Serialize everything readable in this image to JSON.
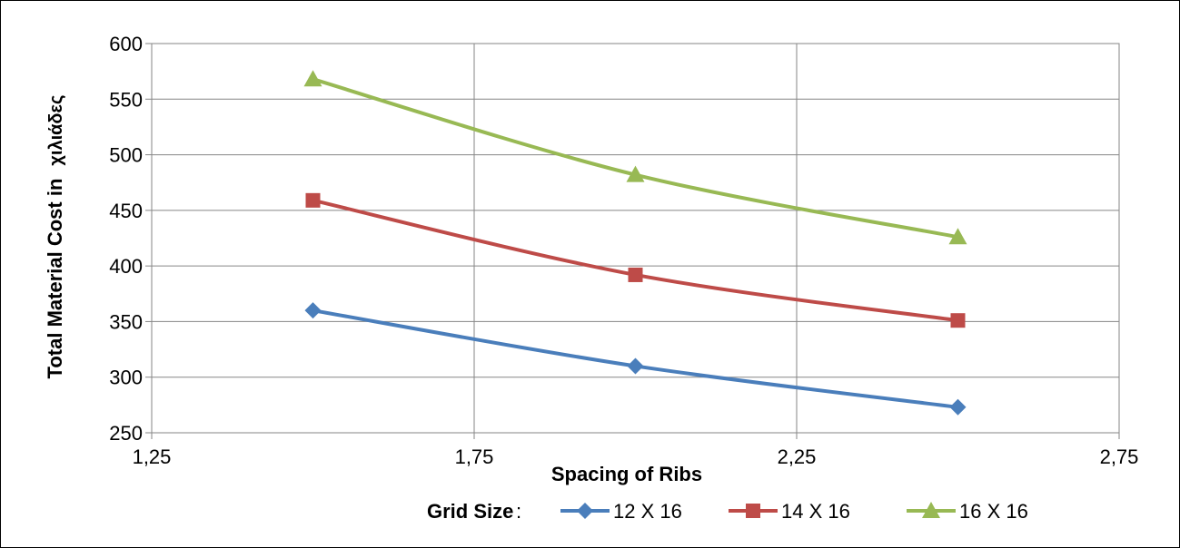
{
  "chart_data": {
    "type": "scatter",
    "xlabel": "Spacing of Ribs",
    "ylabel": "Total Material Cost in",
    "ylabel_unit": "χιλιάδες",
    "xlim": [
      1.25,
      2.75
    ],
    "ylim": [
      250,
      600
    ],
    "x_ticks": [
      "1,25",
      "1,75",
      "2,25",
      "2,75"
    ],
    "y_ticks": [
      "250",
      "300",
      "350",
      "400",
      "450",
      "500",
      "550",
      "600"
    ],
    "x_tick_values": [
      1.25,
      1.75,
      2.25,
      2.75
    ],
    "y_tick_values": [
      250,
      300,
      350,
      400,
      450,
      500,
      550,
      600
    ],
    "grid": true,
    "smooth_lines": true,
    "legend_title": "Grid Size",
    "legend_separator": ":",
    "legend_position": "bottom",
    "series": [
      {
        "name": "12 X 16",
        "marker": "diamond",
        "color": "#4A7EBB",
        "x": [
          1.5,
          2.0,
          2.5
        ],
        "y": [
          360,
          310,
          273
        ]
      },
      {
        "name": "14 X 16",
        "marker": "square",
        "color": "#BE4B48",
        "x": [
          1.5,
          2.0,
          2.5
        ],
        "y": [
          459,
          392,
          351
        ]
      },
      {
        "name": "16 X 16",
        "marker": "triangle",
        "color": "#98B954",
        "x": [
          1.5,
          2.0,
          2.5
        ],
        "y": [
          568,
          482,
          426
        ]
      }
    ]
  }
}
